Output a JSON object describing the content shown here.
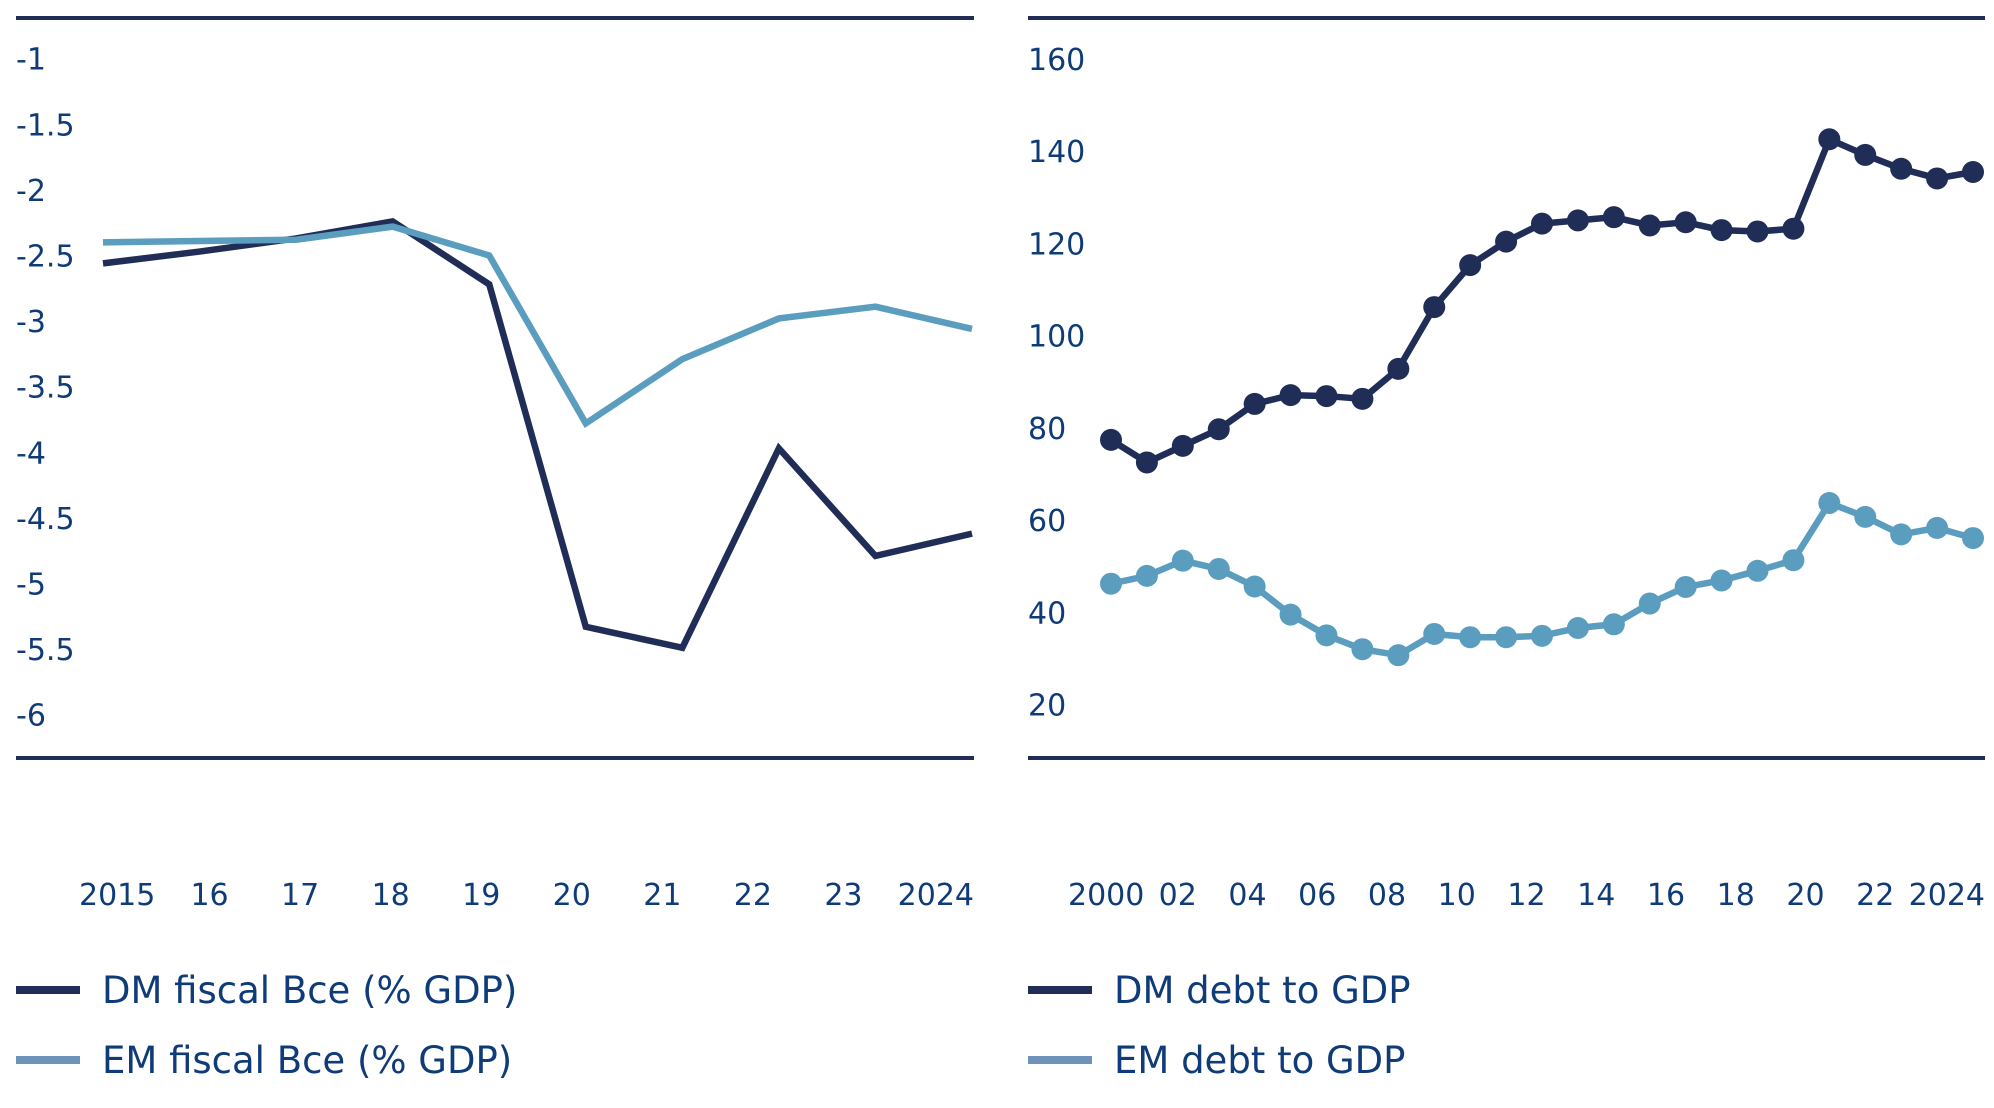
{
  "colors": {
    "dm": "#1f2d57",
    "em": "#5b9dbf",
    "em_legend": "#6f93b8",
    "text": "#0f3b78",
    "rule": "#1f2d57"
  },
  "chart_data": [
    {
      "type": "line",
      "x": [
        2015,
        2016,
        2017,
        2018,
        2019,
        2020,
        2021,
        2022,
        2023,
        2024
      ],
      "xtick_labels": [
        "2015",
        "16",
        "17",
        "18",
        "19",
        "20",
        "21",
        "22",
        "23",
        "2024"
      ],
      "ytick_values": [
        -1,
        -1.5,
        -2,
        -2.5,
        -3,
        -3.5,
        -4,
        -4.5,
        -5,
        -5.5,
        -6
      ],
      "ytick_labels": [
        "-1",
        "-1.5",
        "-2",
        "-2.5",
        "-3",
        "-3.5",
        "-4",
        "-4.5",
        "-5",
        "-5.5",
        "-6"
      ],
      "ylim": [
        -6.33,
        -0.69
      ],
      "grid": false,
      "legend_position": "bottom",
      "markers": false,
      "series": [
        {
          "name": "DM fiscal Bce (% GDP)",
          "color_key": "dm",
          "values": [
            -2.56,
            -2.47,
            -2.37,
            -2.24,
            -2.72,
            -5.33,
            -5.49,
            -3.97,
            -4.79,
            -4.62
          ]
        },
        {
          "name": "EM fiscal Bce (% GDP)",
          "color_key": "em",
          "values": [
            -2.4,
            -2.39,
            -2.38,
            -2.28,
            -2.5,
            -3.78,
            -3.29,
            -2.98,
            -2.89,
            -3.06
          ]
        }
      ]
    },
    {
      "type": "line",
      "x": [
        2000,
        2001,
        2002,
        2003,
        2004,
        2005,
        2006,
        2007,
        2008,
        2009,
        2010,
        2011,
        2012,
        2013,
        2014,
        2015,
        2016,
        2017,
        2018,
        2019,
        2020,
        2021,
        2022,
        2023,
        2024
      ],
      "xtick_labels": [
        "2000",
        "02",
        "04",
        "06",
        "08",
        "10",
        "12",
        "14",
        "16",
        "18",
        "20",
        "22",
        "2024"
      ],
      "ytick_values": [
        160,
        140,
        120,
        100,
        80,
        60,
        40,
        20
      ],
      "ytick_labels": [
        "160",
        "140",
        "120",
        "100",
        "80",
        "60",
        "40",
        "20"
      ],
      "ylim": [
        8.4,
        168.9
      ],
      "grid": false,
      "legend_position": "bottom",
      "markers": true,
      "series": [
        {
          "name": "DM debt to GDP",
          "color_key": "dm",
          "values": [
            77.4,
            72.5,
            76.1,
            79.7,
            85.2,
            87.1,
            86.9,
            86.3,
            92.8,
            106.2,
            115.3,
            120.4,
            124.3,
            125.0,
            125.7,
            123.9,
            124.6,
            122.9,
            122.6,
            123.2,
            142.6,
            139.2,
            136.2,
            134.1,
            135.5
          ]
        },
        {
          "name": "EM debt to GDP",
          "color_key": "em",
          "values": [
            46.2,
            47.9,
            51.2,
            49.4,
            45.6,
            39.5,
            35.0,
            32.0,
            30.7,
            35.3,
            34.6,
            34.6,
            34.9,
            36.6,
            37.4,
            41.9,
            45.5,
            46.9,
            49.0,
            51.3,
            63.7,
            60.7,
            56.9,
            58.3,
            56.1
          ]
        }
      ]
    }
  ]
}
